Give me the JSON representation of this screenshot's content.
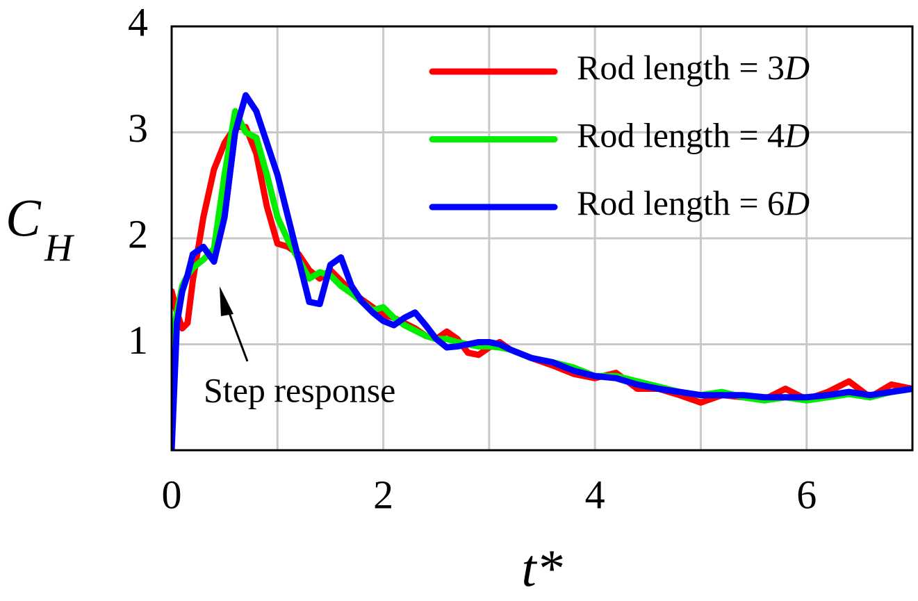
{
  "chart_data": {
    "type": "line",
    "xlabel": "t*",
    "ylabel": "C",
    "ylabel_sub": "H",
    "annotation": "Step response",
    "x": [
      0,
      0.05,
      0.1,
      0.15,
      0.2,
      0.3,
      0.4,
      0.5,
      0.6,
      0.7,
      0.8,
      0.9,
      1.0,
      1.1,
      1.2,
      1.3,
      1.4,
      1.5,
      1.6,
      1.7,
      1.8,
      1.9,
      2.0,
      2.1,
      2.2,
      2.3,
      2.4,
      2.5,
      2.6,
      2.7,
      2.8,
      2.9,
      3.0,
      3.1,
      3.2,
      3.4,
      3.6,
      3.8,
      4.0,
      4.2,
      4.4,
      4.6,
      4.8,
      5.0,
      5.2,
      5.4,
      5.6,
      5.8,
      6.0,
      6.2,
      6.4,
      6.6,
      6.8,
      7.0
    ],
    "series": [
      {
        "name": "Rod length = 3D",
        "color": "#ff0000",
        "values": [
          1.5,
          1.3,
          1.15,
          1.2,
          1.6,
          2.2,
          2.65,
          2.9,
          3.05,
          3.05,
          2.8,
          2.3,
          1.95,
          1.92,
          1.85,
          1.7,
          1.62,
          1.7,
          1.6,
          1.5,
          1.42,
          1.35,
          1.28,
          1.25,
          1.2,
          1.15,
          1.08,
          1.05,
          1.12,
          1.05,
          0.92,
          0.9,
          0.97,
          1.02,
          0.95,
          0.87,
          0.8,
          0.72,
          0.68,
          0.73,
          0.58,
          0.58,
          0.52,
          0.45,
          0.52,
          0.5,
          0.48,
          0.58,
          0.48,
          0.55,
          0.65,
          0.5,
          0.62,
          0.58
        ]
      },
      {
        "name": "Rod length = 4D",
        "color": "#00ee00",
        "values": [
          1.0,
          1.3,
          1.55,
          1.65,
          1.72,
          1.8,
          1.9,
          2.6,
          3.2,
          3.0,
          2.95,
          2.6,
          2.2,
          1.98,
          1.8,
          1.62,
          1.68,
          1.65,
          1.55,
          1.48,
          1.4,
          1.32,
          1.35,
          1.25,
          1.18,
          1.13,
          1.08,
          1.05,
          1.05,
          1.02,
          1.0,
          0.98,
          0.98,
          0.97,
          0.95,
          0.87,
          0.83,
          0.78,
          0.7,
          0.7,
          0.65,
          0.6,
          0.55,
          0.52,
          0.55,
          0.5,
          0.47,
          0.5,
          0.47,
          0.5,
          0.53,
          0.5,
          0.55,
          0.58
        ]
      },
      {
        "name": "Rod length = 6D",
        "color": "#0000ff",
        "values": [
          0,
          1.2,
          1.5,
          1.65,
          1.85,
          1.92,
          1.78,
          2.2,
          3.0,
          3.35,
          3.2,
          2.9,
          2.6,
          2.2,
          1.8,
          1.4,
          1.38,
          1.75,
          1.82,
          1.55,
          1.4,
          1.3,
          1.22,
          1.18,
          1.25,
          1.3,
          1.18,
          1.05,
          0.97,
          0.98,
          1.0,
          1.02,
          1.02,
          1.0,
          0.95,
          0.87,
          0.83,
          0.75,
          0.7,
          0.68,
          0.62,
          0.58,
          0.55,
          0.52,
          0.52,
          0.52,
          0.5,
          0.5,
          0.5,
          0.52,
          0.55,
          0.52,
          0.55,
          0.58
        ]
      }
    ],
    "xlim": [
      0,
      7
    ],
    "ylim": [
      0,
      4
    ],
    "xticks": [
      0,
      2,
      4,
      6
    ],
    "x_minor_grid": [
      1,
      3,
      5
    ],
    "yticks": [
      1,
      2,
      3,
      4
    ],
    "grid": true,
    "legend": "upper right"
  }
}
